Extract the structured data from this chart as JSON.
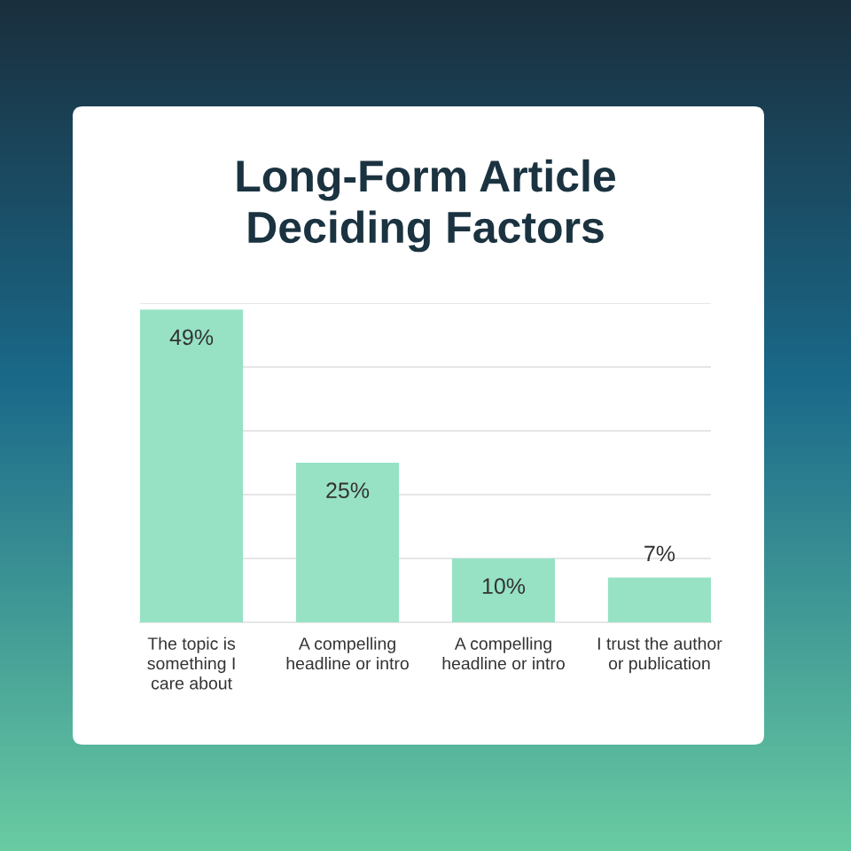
{
  "chart_data": {
    "type": "bar",
    "title": "Long-Form Article\nDeciding Factors",
    "categories": [
      "The topic is\nsomething I\ncare about",
      "A compelling\nheadline or intro",
      "A compelling\nheadline or intro",
      "I trust the author\nor publication"
    ],
    "values": [
      49,
      25,
      10,
      7
    ],
    "color": "#97e2c5",
    "value_labels": [
      "49%",
      "25%",
      "10%",
      "7%"
    ],
    "ylim": [
      0,
      50
    ],
    "yticks": [
      {
        "value": 0,
        "label": null
      },
      {
        "value": 10,
        "label": null
      },
      {
        "value": 20,
        "label": null
      },
      {
        "value": 30,
        "label": null
      },
      {
        "value": 40,
        "label": null
      },
      {
        "value": 50,
        "label": null
      }
    ],
    "grid": "y",
    "tick_labels": "x"
  }
}
